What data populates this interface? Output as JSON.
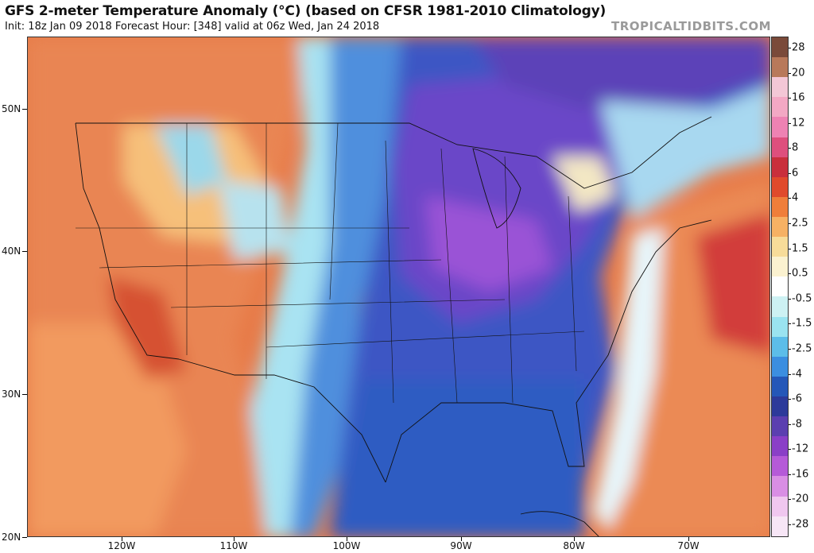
{
  "header": {
    "title": "GFS 2-meter Temperature Anomaly (°C) (based on CFSR 1981-2010 Climatology)",
    "subtitle": "Init: 18z Jan 09 2018   Forecast Hour: [348]   valid at 06z Wed, Jan 24 2018",
    "credit": "TROPICALTIDBITS.COM"
  },
  "axes": {
    "lat_labels": [
      "50N",
      "40N",
      "30N",
      "20N"
    ],
    "lon_labels": [
      "120W",
      "110W",
      "100W",
      "90W",
      "80W",
      "70W"
    ]
  },
  "colorbar": {
    "labels": [
      "28",
      "20",
      "16",
      "12",
      "8",
      "6",
      "4",
      "2.5",
      "1.5",
      "0.5",
      "-0.5",
      "-1.5",
      "-2.5",
      "-4",
      "-6",
      "-8",
      "-12",
      "-16",
      "-20",
      "-28"
    ],
    "colors": [
      "#7a4a3a",
      "#b8795a",
      "#f3c7d6",
      "#f3a8c4",
      "#ee82b3",
      "#de4f7d",
      "#c92f3c",
      "#e04a2c",
      "#ef7e3a",
      "#f6b164",
      "#f7dc99",
      "#fbf2d0",
      "#ffffff",
      "#cdf1f3",
      "#9ae3f0",
      "#5cbde9",
      "#3b8ee0",
      "#2457b8",
      "#2c3a9a",
      "#5b3fb0",
      "#8a3fc7",
      "#b55ad8",
      "#d98ee4",
      "#f0c7ef",
      "#f7e6f6"
    ]
  },
  "map": {
    "region": "CONUS and surrounding waters",
    "anomaly_pattern": {
      "west": "warm",
      "central_and_east": "cold",
      "gulf_coast": "cold",
      "western_atlantic": "warm"
    }
  }
}
